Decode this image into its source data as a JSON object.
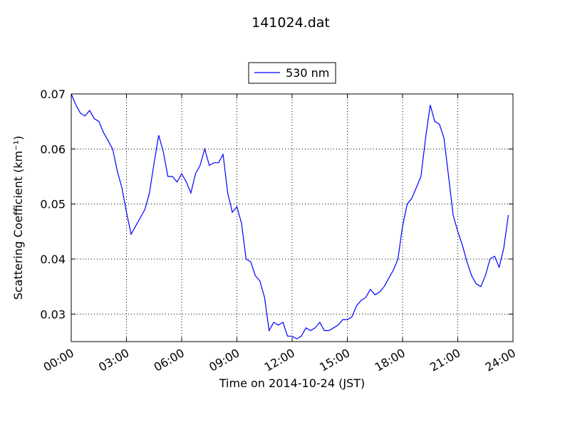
{
  "chart_data": {
    "type": "line",
    "title": "141024.dat",
    "x_label": "Time on 2014-10-24 (JST)",
    "y_label": "Scattering Coefficient (km⁻¹)",
    "x": [
      0,
      0.25,
      0.5,
      0.75,
      1,
      1.25,
      1.5,
      1.75,
      2,
      2.25,
      2.5,
      2.75,
      3,
      3.25,
      3.5,
      3.75,
      4,
      4.25,
      4.5,
      4.75,
      5,
      5.25,
      5.5,
      5.75,
      6,
      6.25,
      6.5,
      6.75,
      7,
      7.25,
      7.5,
      7.75,
      8,
      8.25,
      8.5,
      8.75,
      9,
      9.25,
      9.5,
      9.75,
      10,
      10.25,
      10.5,
      10.75,
      11,
      11.25,
      11.5,
      11.75,
      12,
      12.25,
      12.5,
      12.75,
      13,
      13.25,
      13.5,
      13.75,
      14,
      14.25,
      14.5,
      14.75,
      15,
      15.25,
      15.5,
      15.75,
      16,
      16.25,
      16.5,
      16.75,
      17,
      17.25,
      17.5,
      17.75,
      18,
      18.25,
      18.5,
      18.75,
      19,
      19.25,
      19.5,
      19.75,
      20,
      20.25,
      20.5,
      20.75,
      21,
      21.25,
      21.5,
      21.75,
      22,
      22.25,
      22.5,
      22.75,
      23,
      23.25,
      23.5,
      23.75
    ],
    "series": [
      {
        "name": "530 nm",
        "color": "#0000ff",
        "values": [
          0.07,
          0.068,
          0.0665,
          0.066,
          0.067,
          0.0655,
          0.065,
          0.063,
          0.0615,
          0.06,
          0.056,
          0.053,
          0.0485,
          0.0445,
          0.046,
          0.0475,
          0.049,
          0.052,
          0.0575,
          0.0625,
          0.0595,
          0.055,
          0.055,
          0.054,
          0.0555,
          0.054,
          0.052,
          0.0555,
          0.057,
          0.06,
          0.057,
          0.0575,
          0.0575,
          0.059,
          0.052,
          0.0485,
          0.0495,
          0.0465,
          0.04,
          0.0395,
          0.037,
          0.036,
          0.033,
          0.027,
          0.0285,
          0.028,
          0.0285,
          0.026,
          0.026,
          0.0255,
          0.026,
          0.0275,
          0.027,
          0.0275,
          0.0285,
          0.027,
          0.027,
          0.0275,
          0.028,
          0.029,
          0.029,
          0.0295,
          0.0315,
          0.0325,
          0.033,
          0.0345,
          0.0335,
          0.034,
          0.035,
          0.0365,
          0.038,
          0.04,
          0.046,
          0.05,
          0.051,
          0.053,
          0.055,
          0.062,
          0.068,
          0.065,
          0.0645,
          0.062,
          0.055,
          0.048,
          0.045,
          0.0425,
          0.0395,
          0.037,
          0.0355,
          0.035,
          0.037,
          0.04,
          0.0405,
          0.0385,
          0.042,
          0.048
        ]
      }
    ],
    "xlim": [
      0,
      24
    ],
    "xticks": [
      {
        "value": 0,
        "label": "00:00"
      },
      {
        "value": 3,
        "label": "03:00"
      },
      {
        "value": 6,
        "label": "06:00"
      },
      {
        "value": 9,
        "label": "09:00"
      },
      {
        "value": 12,
        "label": "12:00"
      },
      {
        "value": 15,
        "label": "15:00"
      },
      {
        "value": 18,
        "label": "18:00"
      },
      {
        "value": 21,
        "label": "21:00"
      },
      {
        "value": 24,
        "label": "24:00"
      }
    ],
    "ylim": [
      0.025,
      0.07
    ],
    "yticks": [
      0.03,
      0.04,
      0.05,
      0.06,
      0.07
    ],
    "grid": true,
    "legend": "upper center"
  }
}
